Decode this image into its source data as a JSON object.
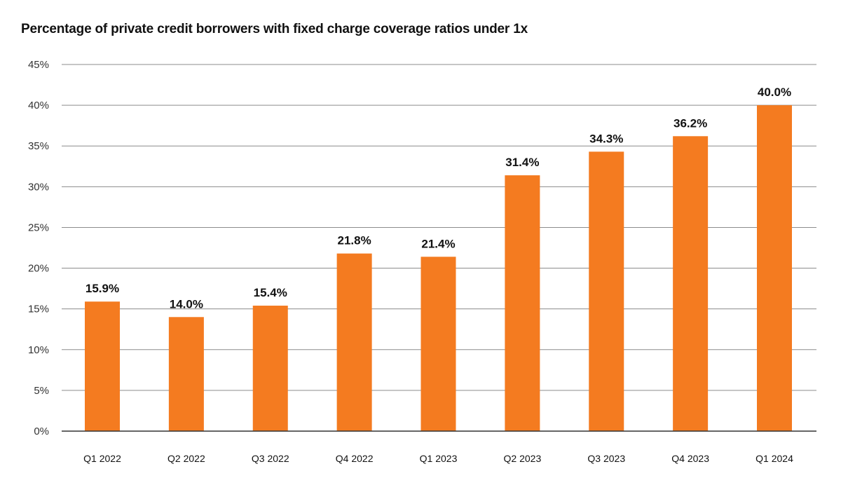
{
  "chart_data": {
    "type": "bar",
    "title": "Percentage of private credit borrowers with fixed charge coverage ratios under 1x",
    "xlabel": "",
    "ylabel": "",
    "categories": [
      "Q1 2022",
      "Q2 2022",
      "Q3 2022",
      "Q4 2022",
      "Q1 2023",
      "Q2 2023",
      "Q3 2023",
      "Q4 2023",
      "Q1 2024"
    ],
    "values": [
      15.9,
      14.0,
      15.4,
      21.8,
      21.4,
      31.4,
      34.3,
      36.2,
      40.0
    ],
    "data_labels": [
      "15.9%",
      "14.0%",
      "15.4%",
      "21.8%",
      "21.4%",
      "31.4%",
      "34.3%",
      "36.2%",
      "40.0%"
    ],
    "ylim": [
      0,
      45
    ],
    "y_ticks": [
      0,
      5,
      10,
      15,
      20,
      25,
      30,
      35,
      40,
      45
    ],
    "y_tick_labels": [
      "0%",
      "5%",
      "10%",
      "15%",
      "20%",
      "25%",
      "30%",
      "35%",
      "40%",
      "45%"
    ],
    "grid": true,
    "legend": "none",
    "bar_color": "#F47B20"
  }
}
